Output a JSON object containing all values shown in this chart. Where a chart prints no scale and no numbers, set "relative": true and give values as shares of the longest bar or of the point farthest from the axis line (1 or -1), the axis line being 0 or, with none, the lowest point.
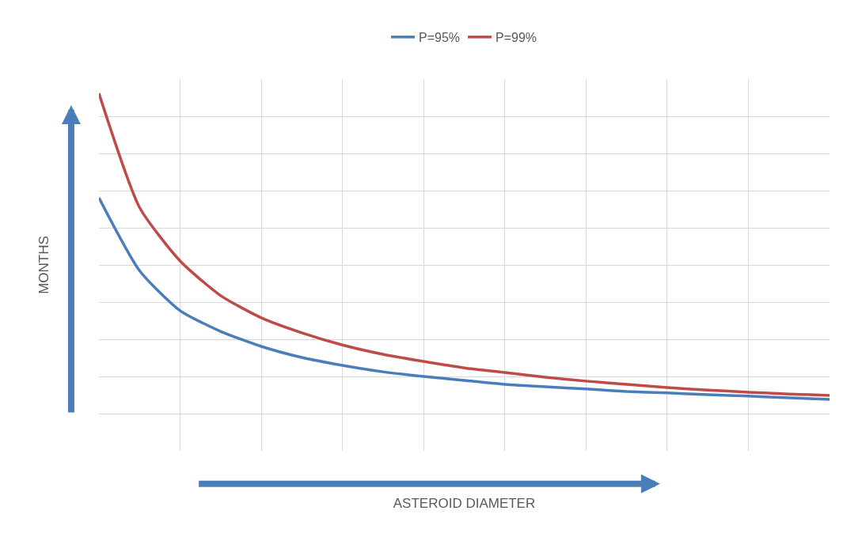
{
  "chart_data": {
    "type": "line",
    "relative": true,
    "xlabel": "ASTEROID DIAMETER",
    "ylabel": "MONTHS",
    "categories": [
      null,
      null,
      null,
      null,
      null,
      null,
      null,
      null,
      null,
      null,
      null,
      null,
      null,
      null,
      null,
      null,
      null,
      null,
      null
    ],
    "series": [
      {
        "name": "P=95%",
        "color": "#4a7ebb",
        "values": [
          0.708,
          0.504,
          0.392,
          0.334,
          0.292,
          0.261,
          0.239,
          0.221,
          0.208,
          0.197,
          0.186,
          0.179,
          0.173,
          0.166,
          0.162,
          0.157,
          0.153,
          0.148,
          0.144
        ]
      },
      {
        "name": "P=99%",
        "color": "#be4b48",
        "values": [
          1.0,
          0.681,
          0.531,
          0.434,
          0.372,
          0.33,
          0.296,
          0.27,
          0.25,
          0.232,
          0.219,
          0.206,
          0.195,
          0.186,
          0.177,
          0.17,
          0.164,
          0.159,
          0.155
        ]
      }
    ],
    "grid": true,
    "legend": "top",
    "marker": "none",
    "line_style": "solid"
  }
}
